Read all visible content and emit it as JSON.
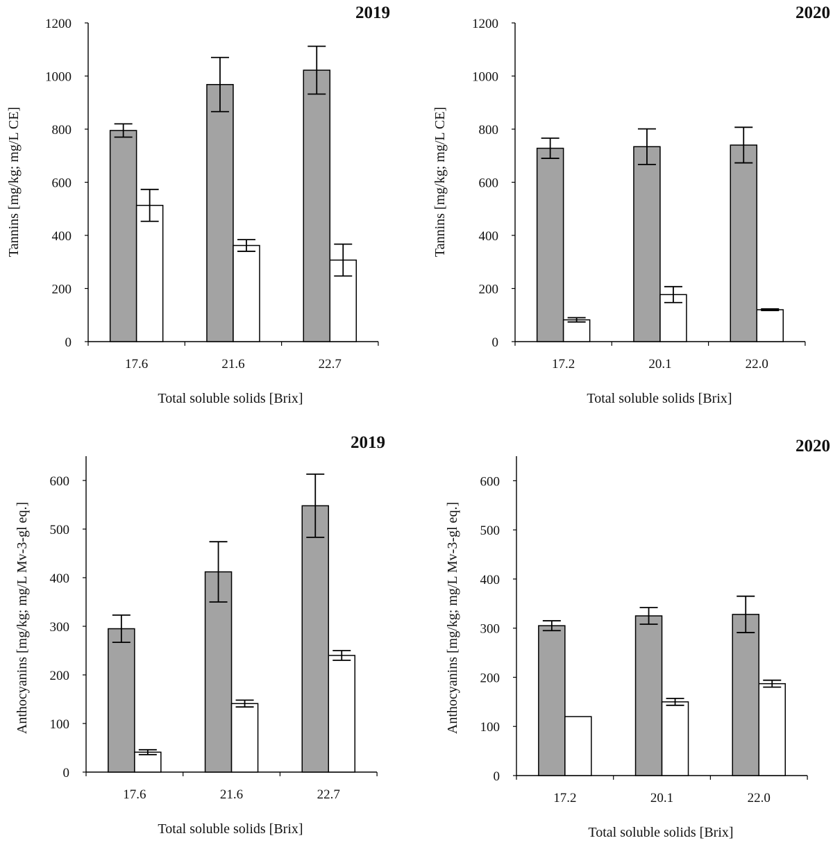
{
  "colors": {
    "gray_bar": "#a3a3a3",
    "white_bar": "#ffffff",
    "stroke": "#000000"
  },
  "chart_data": [
    {
      "type": "bar",
      "title": "2019",
      "xlabel": "Total soluble solids [Brix]",
      "ylabel": "Tannins [mg/kg; mg/L CE]",
      "ylim": [
        0,
        1200
      ],
      "yticks": [
        0,
        200,
        400,
        600,
        800,
        1000,
        1200
      ],
      "categories": [
        "17.6",
        "21.6",
        "22.7"
      ],
      "series": [
        {
          "name": "gray",
          "values": [
            795,
            968,
            1022
          ],
          "errors": [
            25,
            102,
            90
          ]
        },
        {
          "name": "white",
          "values": [
            513,
            362,
            307
          ],
          "errors": [
            60,
            22,
            60
          ]
        }
      ]
    },
    {
      "type": "bar",
      "title": "2020",
      "xlabel": "Total soluble solids [Brix]",
      "ylabel": "Tannins [mg/kg; mg/L CE]",
      "ylim": [
        0,
        1200
      ],
      "yticks": [
        0,
        200,
        400,
        600,
        800,
        1000,
        1200
      ],
      "categories": [
        "17.2",
        "20.1",
        "22.0"
      ],
      "series": [
        {
          "name": "gray",
          "values": [
            728,
            734,
            740
          ],
          "errors": [
            38,
            67,
            67
          ]
        },
        {
          "name": "white",
          "values": [
            82,
            177,
            120
          ],
          "errors": [
            8,
            30,
            3
          ]
        }
      ]
    },
    {
      "type": "bar",
      "title": "2019",
      "xlabel": "Total soluble solids [Brix]",
      "ylabel": "Anthocyanins  [mg/kg; mg/L Mv-3-gl  eq.]",
      "ylim": [
        0,
        650
      ],
      "yticks": [
        0,
        100,
        200,
        300,
        400,
        500,
        600
      ],
      "categories": [
        "17.6",
        "21.6",
        "22.7"
      ],
      "series": [
        {
          "name": "gray",
          "values": [
            295,
            412,
            548
          ],
          "errors": [
            28,
            62,
            65
          ]
        },
        {
          "name": "white",
          "values": [
            41,
            141,
            240
          ],
          "errors": [
            5,
            7,
            10
          ]
        }
      ]
    },
    {
      "type": "bar",
      "title": "2020",
      "xlabel": "Total soluble solids [Brix]",
      "ylabel": "Anthocyanins  [mg/kg; mg/L Mv-3-gl  eq.]",
      "ylim": [
        0,
        650
      ],
      "yticks": [
        0,
        100,
        200,
        300,
        400,
        500,
        600
      ],
      "categories": [
        "17.2",
        "20.1",
        "22.0"
      ],
      "series": [
        {
          "name": "gray",
          "values": [
            305,
            325,
            328
          ],
          "errors": [
            10,
            17,
            37
          ]
        },
        {
          "name": "white",
          "values": [
            120,
            150,
            187
          ],
          "errors": [
            0,
            7,
            7
          ]
        }
      ]
    }
  ]
}
